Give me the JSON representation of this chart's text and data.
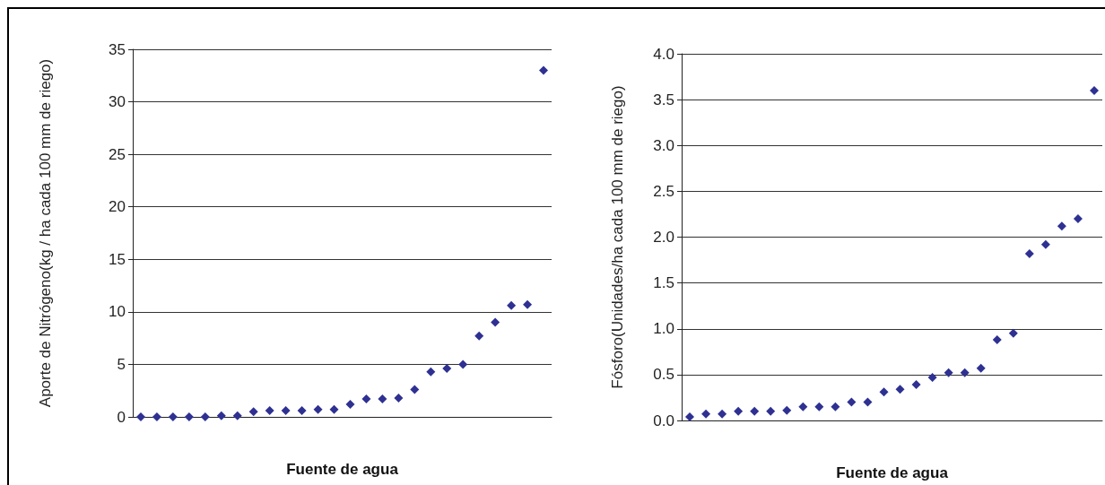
{
  "chart_data": [
    {
      "type": "scatter",
      "xlabel": "Fuente de agua",
      "ylabel": "Aporte de Nitrógeno(kg / ha cada 100 mm de riego)",
      "categories": [
        null,
        null,
        null,
        null,
        null,
        null,
        null,
        null,
        null,
        null,
        null,
        null,
        null,
        null,
        null,
        null,
        null,
        null,
        null,
        null,
        null,
        null,
        null,
        null,
        null,
        null
      ],
      "series": [
        {
          "color": "#2e3192",
          "values": [
            0,
            0,
            0,
            0,
            0,
            0.1,
            0.1,
            0.5,
            0.6,
            0.6,
            0.6,
            0.7,
            0.7,
            1.2,
            1.7,
            1.7,
            1.8,
            2.6,
            4.3,
            4.6,
            5.0,
            7.7,
            9.0,
            10.6,
            10.7,
            33
          ]
        }
      ],
      "ylim": [
        0,
        35
      ],
      "yticks": [
        0,
        5,
        10,
        15,
        20,
        25,
        30,
        35
      ],
      "grid": "y",
      "marker": "diamond",
      "tick_labels": "y"
    },
    {
      "type": "scatter",
      "xlabel": "Fuente de agua",
      "ylabel": "Fósforo(Unidades/ha cada 100 mm de riego)",
      "categories": [
        null,
        null,
        null,
        null,
        null,
        null,
        null,
        null,
        null,
        null,
        null,
        null,
        null,
        null,
        null,
        null,
        null,
        null,
        null,
        null,
        null,
        null,
        null,
        null,
        null,
        null
      ],
      "series": [
        {
          "color": "#2e3192",
          "values": [
            0.04,
            0.07,
            0.07,
            0.1,
            0.1,
            0.1,
            0.11,
            0.15,
            0.15,
            0.15,
            0.2,
            0.2,
            0.31,
            0.34,
            0.39,
            0.47,
            0.52,
            0.52,
            0.57,
            0.88,
            0.95,
            1.82,
            1.92,
            2.12,
            2.2,
            3.6
          ]
        }
      ],
      "ylim": [
        0,
        4
      ],
      "yticks": [
        {
          "value": 0,
          "label": "0.0"
        },
        {
          "value": 0.5,
          "label": "0.5"
        },
        {
          "value": 1,
          "label": "1.0"
        },
        {
          "value": 1.5,
          "label": "1.5"
        },
        {
          "value": 2,
          "label": "2.0"
        },
        {
          "value": 2.5,
          "label": "2.5"
        },
        {
          "value": 3,
          "label": "3.0"
        },
        {
          "value": 3.5,
          "label": "3.5"
        },
        {
          "value": 4,
          "label": "4.0"
        }
      ],
      "grid": "y",
      "marker": "diamond",
      "tick_labels": "y"
    }
  ]
}
